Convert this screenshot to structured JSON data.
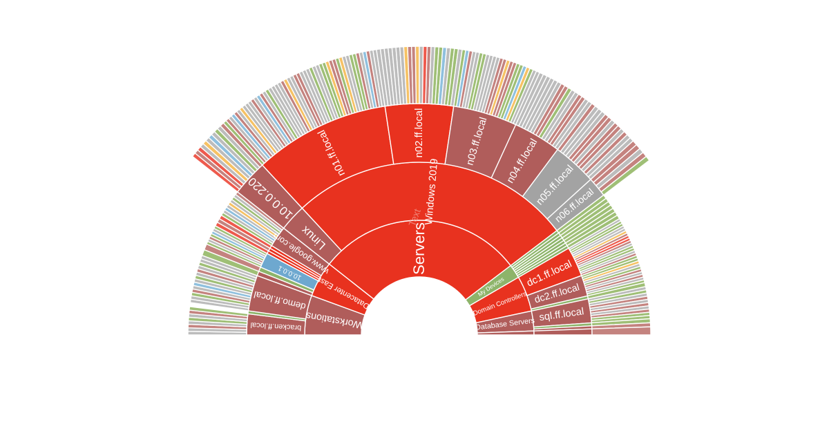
{
  "chart_data": {
    "type": "sunburst",
    "layout": "half-circle (left to right, opening upward)",
    "watermark": "Text",
    "palette": {
      "g": "#bcbcbc",
      "n": "#9fbf76",
      "r": "#c4837f",
      "o": "#f6c265",
      "b": "#8fc0de",
      "e": "#ee5a4d"
    },
    "colors": {
      "red": "#e8321f",
      "rose": "#b05d5b",
      "gray": "#a3a3a3",
      "blue": "#6ea8cf",
      "green": "#8db46a"
    },
    "root": {
      "children": [
        {
          "label": "Workstations",
          "color": "rose",
          "children": [
            {
              "label": "bracken.ff.local",
              "color": "rose",
              "value": 7,
              "leaves": "ggrgngrn"
            },
            {
              "label": "",
              "color": "green",
              "value": 1
            },
            {
              "label": "demo.ff.local",
              "color": "rose",
              "value": 12,
              "leaves": "ggnrgbgngrgngg"
            }
          ]
        },
        {
          "label": "Datacenter East",
          "color": "red",
          "children": [
            {
              "label": "",
              "color": "rose",
              "value": 1.5,
              "leaves": "n"
            },
            {
              "label": "",
              "color": "green",
              "value": 1.5,
              "leaves": "r"
            },
            {
              "label": "10.0.0.1",
              "color": "blue",
              "value": 5,
              "leaves": "ngrnbgn"
            },
            {
              "label": "",
              "color": "red",
              "value": 1,
              "leaves": "e"
            },
            {
              "label": "",
              "color": "red",
              "value": 1,
              "leaves": "r"
            },
            {
              "label": "",
              "color": "red",
              "value": 1,
              "leaves": "e"
            },
            {
              "label": "www.google.com",
              "color": "rose",
              "value": 7,
              "leaves": "ngbgogngr"
            }
          ]
        },
        {
          "label": "Servers",
          "color": "red",
          "children": [
            {
              "label": "Linux",
              "color": "rose",
              "children": [
                {
                  "label": "10.0.0.220",
                  "color": "rose",
                  "value": 9,
                  "leaves": "eregogbgngr"
                }
              ]
            },
            {
              "label": "Windows 2019",
              "color": "red",
              "children": [
                {
                  "label": "n01.ff.local",
                  "color": "red",
                  "value": 34,
                  "leaves": "nrgbrgogggrgbrgnggggroggrrgggnggnnorrnoggnnrgbrgg"
                },
                {
                  "label": "n02.ff.local",
                  "color": "red",
                  "value": 17,
                  "leaves": "gggggggorrogergnnbgnng"
                },
                {
                  "label": "n03.ff.local",
                  "color": "rose",
                  "value": 16,
                  "leaves": "nbrggnnggggrrorrnnbongg"
                },
                {
                  "label": "n04.ff.local",
                  "color": "rose",
                  "value": 12,
                  "leaves": "ggggggrrnggrrgg"
                },
                {
                  "label": "n05.ff.local",
                  "color": "gray",
                  "value": 11,
                  "leaves": "rgggrrgrrgrgg"
                },
                {
                  "label": "n06.ff.local",
                  "color": "gray",
                  "value": 5,
                  "leaves": "rrgrn"
                }
              ]
            }
          ]
        },
        {
          "label": "My Devices",
          "color": "green",
          "children": [
            {
              "label": "",
              "color": "green",
              "value": 1,
              "leaves": "n"
            },
            {
              "label": "",
              "color": "green",
              "value": 1,
              "leaves": "n"
            },
            {
              "label": "",
              "color": "green",
              "value": 1,
              "leaves": "n"
            },
            {
              "label": "",
              "color": "green",
              "value": 1,
              "leaves": "n"
            },
            {
              "label": "",
              "color": "green",
              "value": 1,
              "leaves": "n"
            },
            {
              "label": "",
              "color": "green",
              "value": 1,
              "leaves": "n"
            },
            {
              "label": "",
              "color": "green",
              "value": 1,
              "leaves": "n"
            }
          ]
        },
        {
          "label": "Domain Controllers",
          "color": "red",
          "children": [
            {
              "label": "dc1.ff.local",
              "color": "red",
              "value": 10,
              "leaves": "gnnggoreergnngr"
            },
            {
              "label": "dc2.ff.local",
              "color": "rose",
              "value": 7,
              "leaves": "nnognrgrgn"
            },
            {
              "label": "",
              "color": "green",
              "value": 1,
              "leaves": "n"
            }
          ]
        },
        {
          "label": "Database Servers",
          "color": "rose",
          "children": [
            {
              "label": "sql.ff.local",
              "color": "rose",
              "value": 8,
              "leaves": "gngrgrgrnn"
            },
            {
              "label": "",
              "color": "green",
              "value": 1,
              "leaves": "n"
            },
            {
              "label": "",
              "color": "rose",
              "value": 1,
              "leaves": "r"
            }
          ]
        },
        {
          "label": "",
          "color": "rose",
          "value": 2,
          "children": [
            {
              "label": "",
              "color": "rose",
              "value": 2,
              "leaves": "r"
            }
          ]
        }
      ]
    }
  }
}
